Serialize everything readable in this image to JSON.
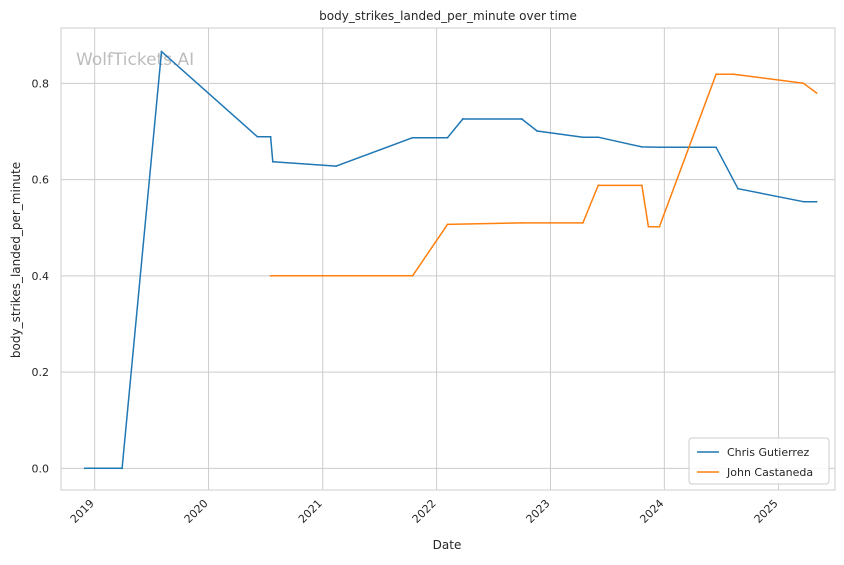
{
  "chart_data": {
    "type": "line",
    "title": "body_strikes_landed_per_minute over time",
    "xlabel": "Date",
    "ylabel": "body_strikes_landed_per_minute",
    "watermark": "WolfTickets.AI",
    "x_ticks": [
      "2019",
      "2020",
      "2021",
      "2022",
      "2023",
      "2024",
      "2025"
    ],
    "y_ticks": [
      "0.0",
      "0.2",
      "0.4",
      "0.6",
      "0.8"
    ],
    "xlim": [
      "2018-09-15",
      "2025-07-01"
    ],
    "ylim": [
      -0.045,
      0.915
    ],
    "grid": true,
    "legend": "lower-right",
    "series": [
      {
        "name": "Chris Gutierrez",
        "color": "#1f77b4",
        "x": [
          "2018-11-30",
          "2019-03-30",
          "2019-08-03",
          "2020-06-06",
          "2020-07-18",
          "2020-07-25",
          "2021-02-13",
          "2021-10-16",
          "2022-02-05",
          "2022-03-26",
          "2022-10-01",
          "2022-11-19",
          "2023-04-15",
          "2023-06-03",
          "2023-10-21",
          "2023-12-16",
          "2024-06-15",
          "2024-08-24",
          "2025-03-22",
          "2025-05-03"
        ],
        "values": [
          0.0,
          0.0,
          0.866,
          0.689,
          0.689,
          0.637,
          0.628,
          0.687,
          0.687,
          0.726,
          0.726,
          0.701,
          0.688,
          0.688,
          0.668,
          0.667,
          0.667,
          0.581,
          0.554,
          0.554
        ]
      },
      {
        "name": "John Castaneda",
        "color": "#ff7f0e",
        "x": [
          "2020-07-18",
          "2021-10-16",
          "2022-02-05",
          "2022-10-01",
          "2023-04-15",
          "2023-06-03",
          "2023-10-21",
          "2023-11-11",
          "2023-12-16",
          "2024-06-15",
          "2024-08-10",
          "2025-03-22",
          "2025-05-03"
        ],
        "values": [
          0.4,
          0.4,
          0.507,
          0.51,
          0.51,
          0.588,
          0.588,
          0.502,
          0.502,
          0.819,
          0.819,
          0.8,
          0.78
        ]
      }
    ]
  }
}
